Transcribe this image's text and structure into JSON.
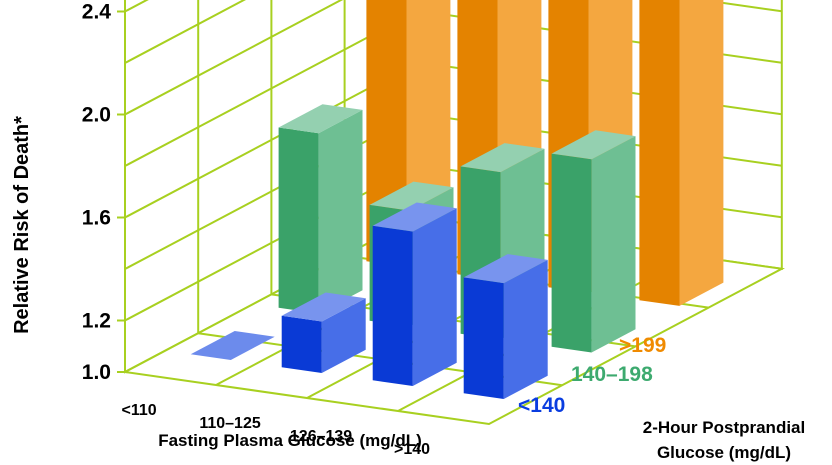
{
  "chart_data": {
    "type": "bar",
    "subtype": "3d-grouped-bar",
    "ylabel": "Relative Risk of Death*",
    "xlabel": "Fasting Plasma Glucose (mg/dL)",
    "zlabel": [
      "2-Hour Postprandial",
      "Glucose (mg/dL)"
    ],
    "ylim": [
      1.0,
      2.6
    ],
    "yticks": [
      "1.0",
      "1.2",
      "1.6",
      "2.0",
      "2.4"
    ],
    "categories": [
      "<110",
      "110–125",
      "126–139",
      ">140"
    ],
    "series": [
      {
        "name": ">199",
        "color": "#F08A00",
        "values": [
          2.25,
          2.25,
          2.5,
          2.55
        ]
      },
      {
        "name": "140–198",
        "color": "#3DAA6F",
        "values": [
          1.7,
          1.45,
          1.65,
          1.75
        ]
      },
      {
        "name": "<140",
        "color": "#0A3DE0",
        "values": [
          1.0,
          1.2,
          1.6,
          1.45
        ]
      }
    ],
    "grid": true
  }
}
